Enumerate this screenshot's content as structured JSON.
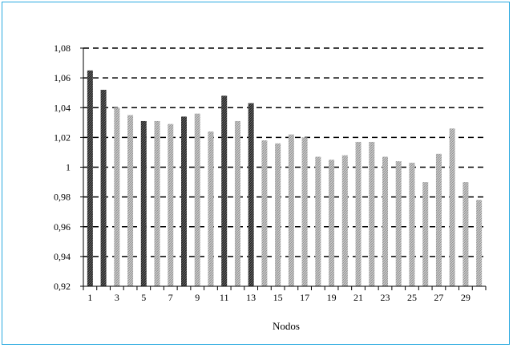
{
  "chart_data": {
    "type": "bar",
    "title": "",
    "xlabel": "Nodos",
    "ylabel": "",
    "ylim": [
      0.92,
      1.08
    ],
    "y_ticks": [
      "0,92",
      "0,94",
      "0,96",
      "0,98",
      "1",
      "1,02",
      "1,04",
      "1,06",
      "1,08"
    ],
    "y_tick_values": [
      0.92,
      0.94,
      0.96,
      0.98,
      1.0,
      1.02,
      1.04,
      1.06,
      1.08
    ],
    "x_tick_labels": [
      "1",
      "3",
      "5",
      "7",
      "9",
      "11",
      "13",
      "15",
      "17",
      "19",
      "21",
      "23",
      "25",
      "27",
      "29"
    ],
    "categories": [
      1,
      2,
      3,
      4,
      5,
      6,
      7,
      8,
      9,
      10,
      11,
      12,
      13,
      14,
      15,
      16,
      17,
      18,
      19,
      20,
      21,
      22,
      23,
      24,
      25,
      26,
      27,
      28,
      29,
      30
    ],
    "values": [
      1.065,
      1.052,
      1.04,
      1.035,
      1.031,
      1.031,
      1.029,
      1.034,
      1.036,
      1.024,
      1.048,
      1.031,
      1.043,
      1.018,
      1.016,
      1.022,
      1.02,
      1.007,
      1.005,
      1.008,
      1.017,
      1.017,
      1.007,
      1.004,
      1.003,
      0.99,
      1.009,
      1.026,
      0.99,
      0.978
    ],
    "bar_styles": [
      "dark",
      "dark",
      "light",
      "light",
      "dark",
      "light",
      "light",
      "dark",
      "light",
      "light",
      "dark",
      "light",
      "dark",
      "light",
      "light",
      "light",
      "light",
      "light",
      "light",
      "light",
      "light",
      "light",
      "light",
      "light",
      "light",
      "light",
      "light",
      "light",
      "light",
      "light"
    ],
    "grid": "dashed horizontal",
    "legend": "none"
  }
}
